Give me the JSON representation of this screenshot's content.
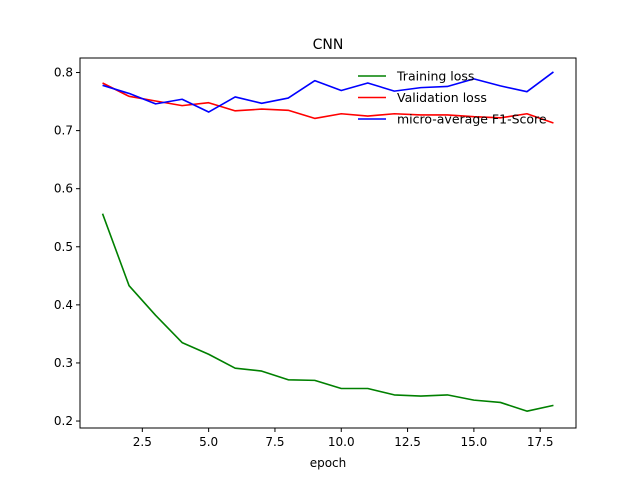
{
  "chart_data": {
    "type": "line",
    "title": "CNN",
    "xlabel": "epoch",
    "ylabel": "",
    "xlim": [
      0.15,
      18.85
    ],
    "ylim": [
      0.188,
      0.825
    ],
    "xticks": [
      2.5,
      5.0,
      7.5,
      10.0,
      12.5,
      15.0,
      17.5
    ],
    "xtick_labels": [
      "2.5",
      "5.0",
      "7.5",
      "10.0",
      "12.5",
      "15.0",
      "17.5"
    ],
    "yticks": [
      0.2,
      0.3,
      0.4,
      0.5,
      0.6,
      0.7,
      0.8
    ],
    "ytick_labels": [
      "0.2",
      "0.3",
      "0.4",
      "0.5",
      "0.6",
      "0.7",
      "0.8"
    ],
    "grid": false,
    "legend_position": "top-right",
    "x": [
      1,
      2,
      3,
      4,
      5,
      6,
      7,
      8,
      9,
      10,
      11,
      12,
      13,
      14,
      15,
      16,
      17,
      18
    ],
    "series": [
      {
        "name": "Training loss",
        "color": "#008000",
        "values": [
          0.557,
          0.433,
          0.382,
          0.335,
          0.315,
          0.291,
          0.286,
          0.271,
          0.27,
          0.256,
          0.256,
          0.245,
          0.243,
          0.245,
          0.236,
          0.232,
          0.217,
          0.227
        ]
      },
      {
        "name": "Validation loss",
        "color": "#ff0000",
        "values": [
          0.782,
          0.759,
          0.751,
          0.743,
          0.748,
          0.734,
          0.737,
          0.735,
          0.721,
          0.729,
          0.725,
          0.729,
          0.727,
          0.727,
          0.724,
          0.722,
          0.729,
          0.713
        ]
      },
      {
        "name": "micro-average F1-Score",
        "color": "#0000ff",
        "values": [
          0.778,
          0.764,
          0.746,
          0.754,
          0.732,
          0.758,
          0.747,
          0.756,
          0.786,
          0.769,
          0.782,
          0.768,
          0.774,
          0.776,
          0.789,
          0.777,
          0.767,
          0.801
        ]
      }
    ]
  }
}
